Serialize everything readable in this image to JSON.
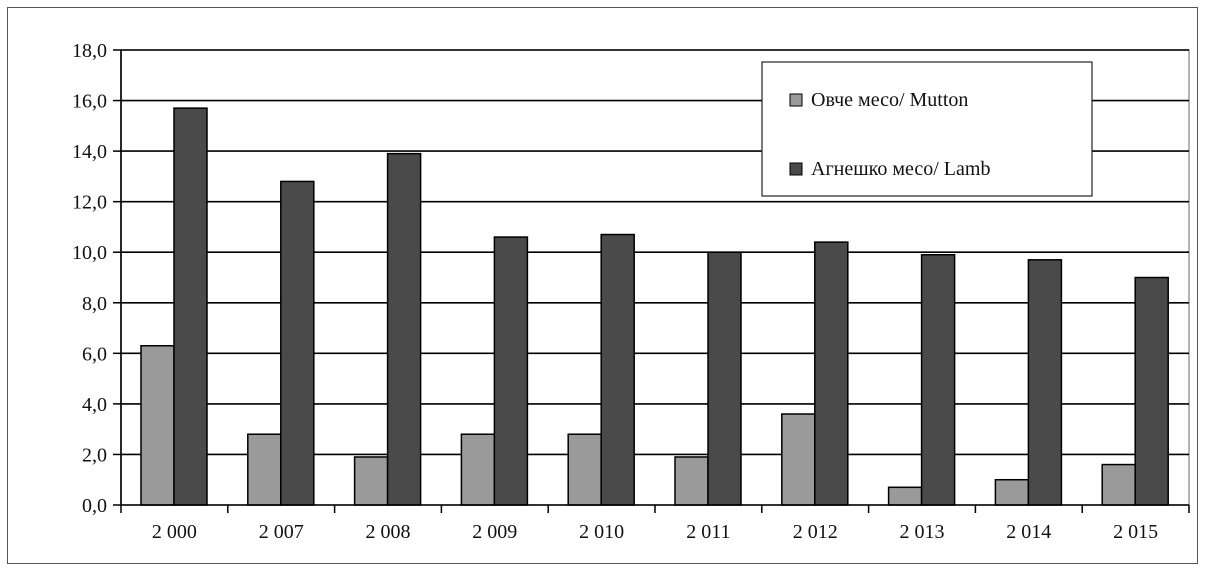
{
  "chart_data": {
    "type": "bar",
    "categories": [
      "2 000",
      "2 007",
      "2 008",
      "2 009",
      "2 010",
      "2 011",
      "2 012",
      "2 013",
      "2 014",
      "2 015"
    ],
    "series": [
      {
        "name": "Овче месо/ Mutton",
        "color": "#9a9a9a",
        "values": [
          6.3,
          2.8,
          1.9,
          2.8,
          2.8,
          1.9,
          3.6,
          0.7,
          1.0,
          1.6
        ]
      },
      {
        "name": "Агнешко месо/  Lamb",
        "color": "#4a4a4a",
        "values": [
          15.7,
          12.8,
          13.9,
          10.6,
          10.7,
          10.0,
          10.4,
          9.9,
          9.7,
          9.0
        ]
      }
    ],
    "ylim": [
      0,
      18
    ],
    "yticks": [
      "0,0",
      "2,0",
      "4,0",
      "6,0",
      "8,0",
      "10,0",
      "12,0",
      "14,0",
      "16,0",
      "18,0"
    ],
    "title": "",
    "xlabel": "",
    "ylabel": "",
    "grid": true,
    "legend_position": "top-right"
  }
}
